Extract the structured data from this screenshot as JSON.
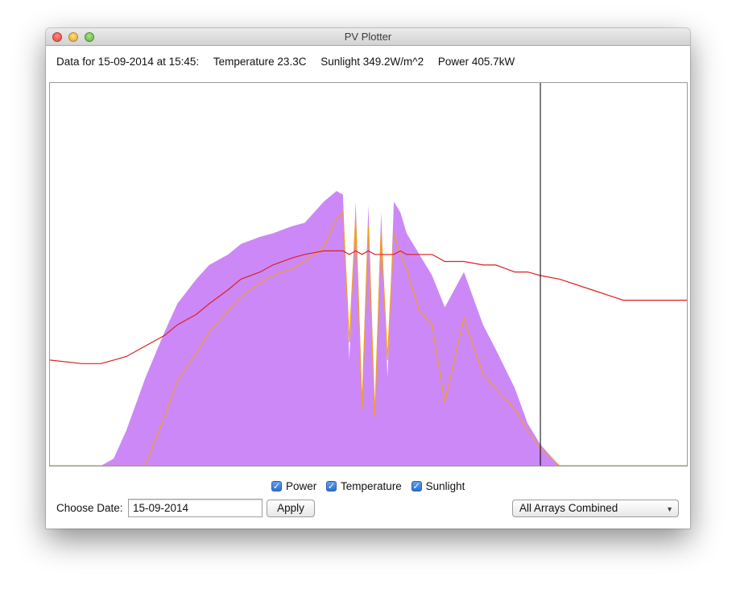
{
  "window": {
    "title": "PV Plotter"
  },
  "info": {
    "data_for": "Data for 15-09-2014 at 15:45:",
    "temperature": "Temperature 23.3C",
    "sunlight": "Sunlight 349.2W/m^2",
    "power": "Power 405.7kW"
  },
  "controls": {
    "power_label": "Power",
    "temperature_label": "Temperature",
    "sunlight_label": "Sunlight",
    "check_icon": "checkmark-icon",
    "date_label": "Choose Date:",
    "date_value": "15-09-2014",
    "apply_label": "Apply",
    "array_selected": "All Arrays Combined",
    "caret_icon": "chevron-down-icon"
  },
  "chart_data": {
    "type": "area",
    "title": "",
    "xlabel": "",
    "ylabel": "",
    "grid": false,
    "legend": "none",
    "x_unit": "fraction of day",
    "x": [
      0.0,
      0.05,
      0.08,
      0.1,
      0.12,
      0.15,
      0.18,
      0.2,
      0.23,
      0.25,
      0.28,
      0.3,
      0.33,
      0.35,
      0.38,
      0.4,
      0.43,
      0.45,
      0.46,
      0.47,
      0.48,
      0.49,
      0.5,
      0.51,
      0.52,
      0.53,
      0.54,
      0.55,
      0.56,
      0.57,
      0.58,
      0.6,
      0.62,
      0.65,
      0.68,
      0.7,
      0.73,
      0.75,
      0.77,
      0.8,
      0.85,
      0.9,
      1.0
    ],
    "cursor_x": 0.77,
    "series": [
      {
        "name": "Sunlight",
        "color": "#cc88f7",
        "style": "fill",
        "values": [
          0,
          0,
          0,
          0.02,
          0.1,
          0.25,
          0.38,
          0.46,
          0.53,
          0.57,
          0.6,
          0.63,
          0.65,
          0.66,
          0.68,
          0.69,
          0.75,
          0.78,
          0.77,
          0.3,
          0.75,
          0.2,
          0.74,
          0.15,
          0.72,
          0.25,
          0.75,
          0.72,
          0.66,
          0.63,
          0.6,
          0.54,
          0.45,
          0.55,
          0.4,
          0.33,
          0.22,
          0.12,
          0.06,
          0,
          0,
          0,
          0
        ]
      },
      {
        "name": "Power",
        "color": "#f0a020",
        "style": "line",
        "values": [
          0,
          0,
          0,
          0,
          0.0,
          0.0,
          0.14,
          0.24,
          0.32,
          0.38,
          0.44,
          0.48,
          0.52,
          0.54,
          0.56,
          0.58,
          0.62,
          0.7,
          0.72,
          0.35,
          0.7,
          0.16,
          0.68,
          0.14,
          0.66,
          0.3,
          0.66,
          0.6,
          0.56,
          0.5,
          0.44,
          0.4,
          0.18,
          0.42,
          0.26,
          0.22,
          0.16,
          0.1,
          0.05,
          0,
          0,
          0,
          0
        ]
      },
      {
        "name": "Temperature",
        "color": "#dd2020",
        "style": "line",
        "values": [
          0.3,
          0.29,
          0.29,
          0.3,
          0.31,
          0.34,
          0.37,
          0.4,
          0.43,
          0.46,
          0.5,
          0.53,
          0.55,
          0.57,
          0.59,
          0.6,
          0.61,
          0.61,
          0.61,
          0.6,
          0.61,
          0.6,
          0.61,
          0.6,
          0.6,
          0.6,
          0.6,
          0.61,
          0.6,
          0.6,
          0.6,
          0.6,
          0.58,
          0.58,
          0.57,
          0.57,
          0.55,
          0.55,
          0.54,
          0.53,
          0.5,
          0.47,
          0.47
        ]
      }
    ]
  }
}
